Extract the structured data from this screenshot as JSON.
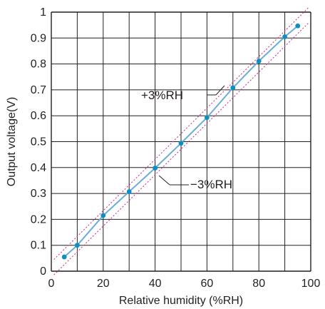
{
  "chart_data": {
    "type": "line",
    "xlabel": "Relative humidity (%RH)",
    "ylabel": "Output voltage(V)",
    "xlim": [
      0,
      100
    ],
    "ylim": [
      0,
      1
    ],
    "x_ticks": [
      "0",
      "20",
      "40",
      "60",
      "80",
      "100"
    ],
    "y_ticks": [
      "0",
      "0.1",
      "0.2",
      "0.3",
      "0.4",
      "0.5",
      "0.6",
      "0.7",
      "0.8",
      "0.9",
      "1"
    ],
    "grid": true,
    "series": [
      {
        "x": [
          5,
          10,
          20,
          30,
          40,
          50,
          60,
          70,
          80,
          90,
          95
        ],
        "y": [
          0.055,
          0.1,
          0.215,
          0.307,
          0.398,
          0.494,
          0.593,
          0.708,
          0.811,
          0.905,
          0.947
        ]
      }
    ],
    "tolerance_band": {
      "upper_label": "+3%RH",
      "lower_label": "−3%RH",
      "offset": 3
    },
    "colors": {
      "line": "#6aaed8",
      "marker": "#0e8fc4",
      "band": "#d6339a",
      "grid": "#231f20"
    }
  }
}
